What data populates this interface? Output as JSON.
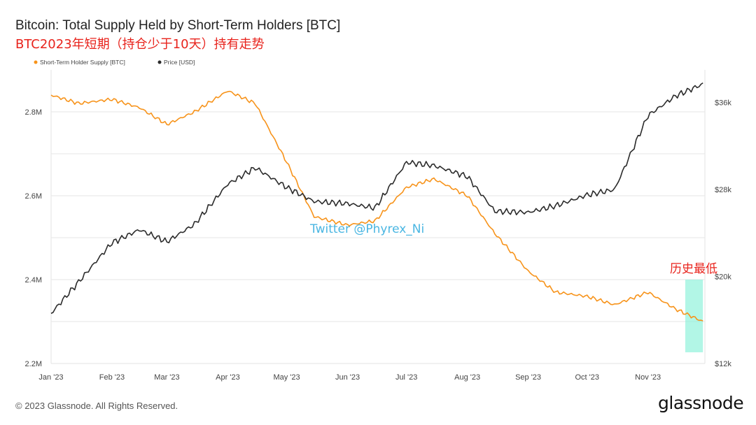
{
  "title": "Bitcoin: Total Supply Held by Short-Term Holders [BTC]",
  "subtitle": "BTC2023年短期（持仓少于10天）持有走势",
  "footer": {
    "copyright": "© 2023 Glassnode. All Rights Reserved.",
    "logo": "glassnode"
  },
  "colors": {
    "supply": "#f7931a",
    "price": "#2b2b2b",
    "highlight": "#7ff0d6",
    "annotation": "#e8231c",
    "watermark": "#4ab6e2"
  },
  "chart_data": {
    "type": "line",
    "title": "Bitcoin: Total Supply Held by Short-Term Holders [BTC]",
    "x": [
      "2023-01-01",
      "2023-01-15",
      "2023-02-01",
      "2023-02-15",
      "2023-03-01",
      "2023-03-15",
      "2023-04-01",
      "2023-04-15",
      "2023-05-01",
      "2023-05-15",
      "2023-06-01",
      "2023-06-15",
      "2023-07-01",
      "2023-07-15",
      "2023-08-01",
      "2023-08-15",
      "2023-09-01",
      "2023-09-15",
      "2023-10-01",
      "2023-10-15",
      "2023-11-01",
      "2023-11-15",
      "2023-11-29"
    ],
    "x_tick_labels": [
      "Jan '23",
      "Feb '23",
      "Mar '23",
      "Apr '23",
      "May '23",
      "Jun '23",
      "Jul '23",
      "Aug '23",
      "Sep '23",
      "Oct '23",
      "Nov '23"
    ],
    "x_tick_dates": [
      "2023-01-01",
      "2023-02-01",
      "2023-03-01",
      "2023-04-01",
      "2023-05-01",
      "2023-06-01",
      "2023-07-01",
      "2023-08-01",
      "2023-09-01",
      "2023-10-01",
      "2023-11-01"
    ],
    "y_left": {
      "ticks": [
        "2.2M",
        "2.4M",
        "2.6M",
        "2.8M"
      ],
      "tick_values": [
        2200000,
        2400000,
        2600000,
        2800000
      ],
      "range": [
        2200000,
        2900000
      ]
    },
    "y_right": {
      "ticks": [
        "$12k",
        "$20k",
        "$28k",
        "$36k"
      ],
      "tick_values": [
        12000,
        20000,
        28000,
        36000
      ],
      "range": [
        12000,
        39000
      ],
      "scale": "linear"
    },
    "legend": {
      "placement": "top-left"
    },
    "grid": true,
    "series": [
      {
        "name": "Short-Term Holder Supply [BTC]",
        "axis": "left",
        "values": [
          2840000,
          2820000,
          2830000,
          2810000,
          2770000,
          2800000,
          2850000,
          2820000,
          2680000,
          2550000,
          2530000,
          2540000,
          2620000,
          2640000,
          2600000,
          2510000,
          2420000,
          2370000,
          2360000,
          2340000,
          2370000,
          2330000,
          2300000
        ]
      },
      {
        "name": "Price [USD]",
        "axis": "right",
        "values": [
          16600,
          19500,
          23100,
          24300,
          23200,
          24800,
          28500,
          30000,
          28200,
          26900,
          26700,
          26300,
          30500,
          30200,
          29200,
          26000,
          25900,
          26500,
          27500,
          28000,
          34800,
          36600,
          37700
        ]
      }
    ],
    "annotations": [
      {
        "text": "历史最低",
        "start": "2023-11-20",
        "end": "2023-11-29"
      },
      {
        "text": "Twitter @Phyrex_Ni"
      }
    ]
  }
}
